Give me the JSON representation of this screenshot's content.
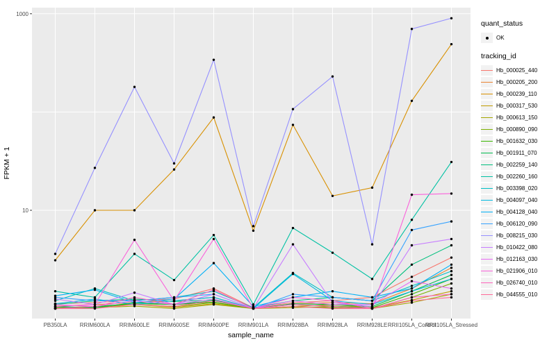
{
  "legend": {
    "quant_status_title": "quant_status",
    "quant_status_value": "OK",
    "tracking_title": "tracking_id"
  },
  "chart_data": {
    "type": "line",
    "title": "",
    "xlabel": "sample_name",
    "ylabel": "FPKM + 1",
    "y_scale": "log10",
    "ylim": [
      1,
      1000
    ],
    "y_tick_values": [
      10,
      1000
    ],
    "y_tick_labels": [
      "10",
      "1000"
    ],
    "y_gridline_values": [
      10,
      100,
      1000
    ],
    "grid": true,
    "legend_position": "right",
    "panel_bg": "#EBEBEB",
    "grid_color": "#FFFFFF",
    "point_color": "#000000",
    "axis_text_color": "#4D4D4D",
    "tick_mark_color": "#333333",
    "categories": [
      "PB350LA",
      "RRIM600LA",
      "RRIM600LE",
      "RRIM600SE",
      "RRIM600PE",
      "RRIM901LA",
      "RRIM928BA",
      "RRIM928LA",
      "RRIM928LE",
      "RRII105LA_Control",
      "RRII105LA_Stressed"
    ],
    "series": [
      {
        "name": "Hb_000025_440",
        "color": "#F8766D",
        "values": [
          1.12,
          1.15,
          1.22,
          1.25,
          1.6,
          1.02,
          1.15,
          1.2,
          1.3,
          2.1,
          3.3
        ]
      },
      {
        "name": "Hb_000205_200",
        "color": "#EA8331",
        "values": [
          1.06,
          1.1,
          1.15,
          1.2,
          1.3,
          1.0,
          1.12,
          1.15,
          1.12,
          1.6,
          2.6
        ]
      },
      {
        "name": "Hb_000239_110",
        "color": "#D89000",
        "values": [
          3.1,
          10,
          10,
          26,
          88,
          6.2,
          74,
          14,
          17,
          130,
          490
        ]
      },
      {
        "name": "Hb_000317_530",
        "color": "#C09B00",
        "values": [
          1.02,
          1.05,
          1.1,
          1.03,
          1.12,
          1.0,
          1.05,
          1.1,
          1.02,
          1.22,
          1.5
        ]
      },
      {
        "name": "Hb_000613_150",
        "color": "#A3A500",
        "values": [
          1.0,
          1.02,
          1.06,
          1.0,
          1.1,
          1.0,
          1.02,
          1.05,
          1.0,
          1.15,
          1.4
        ]
      },
      {
        "name": "Hb_000890_090",
        "color": "#7CAE00",
        "values": [
          1.0,
          1.02,
          1.1,
          1.05,
          1.15,
          1.0,
          1.05,
          1.02,
          1.0,
          1.3,
          1.8
        ]
      },
      {
        "name": "Hb_001632_030",
        "color": "#39B600",
        "values": [
          1.02,
          1.05,
          1.12,
          1.1,
          1.16,
          1.0,
          1.1,
          1.06,
          1.02,
          1.4,
          2.0
        ]
      },
      {
        "name": "Hb_001911_070",
        "color": "#00BB4E",
        "values": [
          1.05,
          1.02,
          1.15,
          1.1,
          1.2,
          1.0,
          1.12,
          1.1,
          1.05,
          1.5,
          2.2
        ]
      },
      {
        "name": "Hb_002259_140",
        "color": "#00BF7D",
        "values": [
          1.1,
          1.2,
          1.25,
          1.18,
          1.22,
          1.02,
          1.2,
          1.3,
          1.2,
          2.8,
          4.4
        ]
      },
      {
        "name": "Hb_002260_160",
        "color": "#00C1A3",
        "values": [
          1.5,
          1.3,
          3.6,
          1.95,
          5.6,
          1.1,
          6.6,
          3.7,
          2.0,
          8.0,
          31
        ]
      },
      {
        "name": "Hb_003398_020",
        "color": "#00BFC4",
        "values": [
          1.2,
          1.6,
          1.2,
          1.3,
          1.5,
          1.02,
          2.3,
          1.3,
          1.2,
          1.7,
          2.4
        ]
      },
      {
        "name": "Hb_004097_040",
        "color": "#00BAE0",
        "values": [
          1.12,
          1.25,
          1.1,
          1.2,
          1.3,
          1.0,
          2.25,
          1.2,
          1.1,
          1.5,
          2.0
        ]
      },
      {
        "name": "Hb_004128_040",
        "color": "#00B0F6",
        "values": [
          1.35,
          1.55,
          1.15,
          1.25,
          2.9,
          1.05,
          1.3,
          1.5,
          1.3,
          1.6,
          2.8
        ]
      },
      {
        "name": "Hb_006120_090",
        "color": "#35A2FF",
        "values": [
          1.3,
          1.2,
          1.2,
          1.3,
          1.4,
          1.0,
          1.4,
          1.3,
          1.2,
          6.3,
          7.7
        ]
      },
      {
        "name": "Hb_008215_030",
        "color": "#9590FF",
        "values": [
          3.6,
          27,
          180,
          30,
          340,
          6.9,
          107,
          230,
          4.5,
          700,
          900
        ]
      },
      {
        "name": "Hb_010422_080",
        "color": "#C77CFF",
        "values": [
          1.25,
          1.1,
          1.45,
          1.1,
          1.4,
          1.0,
          4.5,
          1.15,
          1.05,
          4.4,
          5.1
        ]
      },
      {
        "name": "Hb_012163_030",
        "color": "#E76BF3",
        "values": [
          1.1,
          1.05,
          1.2,
          1.1,
          1.25,
          1.0,
          1.2,
          1.1,
          1.1,
          1.9,
          1.6
        ]
      },
      {
        "name": "Hb_021906_010",
        "color": "#FA62DB",
        "values": [
          1.05,
          1.1,
          5.0,
          1.2,
          5.1,
          1.0,
          1.3,
          1.2,
          1.0,
          14.4,
          14.8
        ]
      },
      {
        "name": "Hb_026740_010",
        "color": "#FF62BC",
        "values": [
          1.0,
          1.05,
          1.3,
          1.1,
          1.55,
          1.0,
          1.1,
          1.05,
          1.0,
          1.3,
          1.4
        ]
      },
      {
        "name": "Hb_044555_010",
        "color": "#FF6A98",
        "values": [
          1.0,
          1.0,
          1.1,
          1.05,
          1.2,
          1.0,
          1.05,
          1.0,
          1.0,
          1.2,
          1.3
        ]
      }
    ]
  }
}
